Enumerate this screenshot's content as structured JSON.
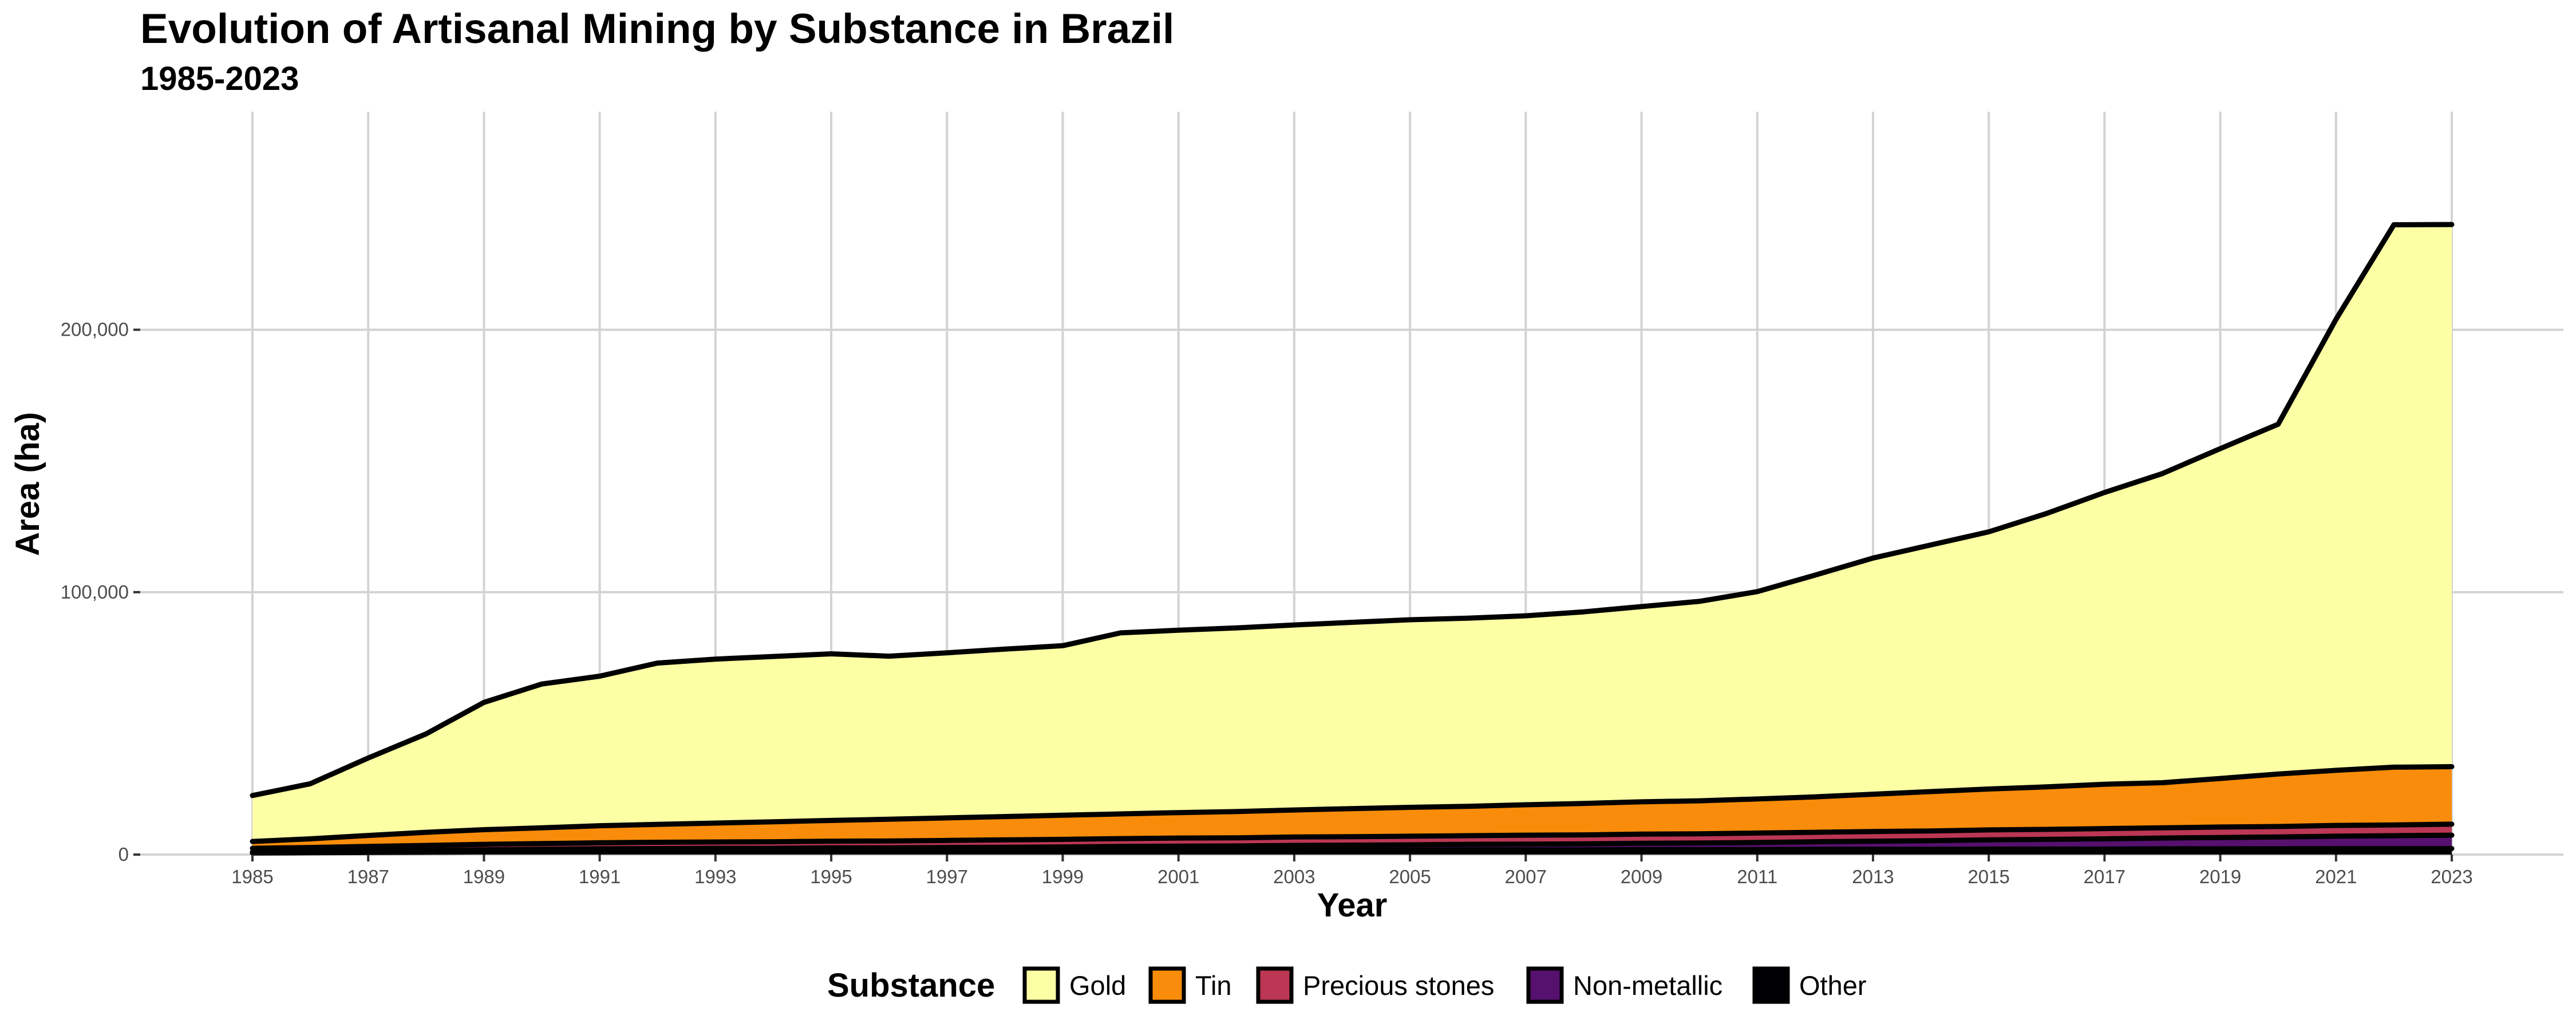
{
  "chart_data": {
    "type": "area",
    "stacked": true,
    "title": "Evolution of Artisanal Mining by Substance in Brazil",
    "subtitle": "1985-2023",
    "xlabel": "Year",
    "ylabel": "Area (ha)",
    "xlim": [
      1985,
      2023
    ],
    "ylim": [
      0,
      270000
    ],
    "x_ticks": [
      1985,
      1987,
      1989,
      1991,
      1993,
      1995,
      1997,
      1999,
      2001,
      2003,
      2005,
      2007,
      2009,
      2011,
      2013,
      2015,
      2017,
      2019,
      2021,
      2023
    ],
    "y_ticks": [
      0,
      100000,
      200000
    ],
    "y_tick_labels": [
      "0",
      "100,000",
      "200,000"
    ],
    "grid": true,
    "legend": {
      "title": "Substance",
      "position": "bottom"
    },
    "x": [
      1985,
      1986,
      1987,
      1988,
      1989,
      1990,
      1991,
      1992,
      1993,
      1994,
      1995,
      1996,
      1997,
      1998,
      1999,
      2000,
      2001,
      2002,
      2003,
      2004,
      2005,
      2006,
      2007,
      2008,
      2009,
      2010,
      2011,
      2012,
      2013,
      2014,
      2015,
      2016,
      2017,
      2018,
      2019,
      2020,
      2021,
      2022,
      2023
    ],
    "series": [
      {
        "name": "Other",
        "color": "#000004",
        "values": [
          600,
          700,
          800,
          900,
          1000,
          1100,
          1200,
          1300,
          1300,
          1300,
          1400,
          1400,
          1400,
          1500,
          1500,
          1600,
          1600,
          1600,
          1700,
          1700,
          1700,
          1800,
          1800,
          1800,
          1900,
          1900,
          1900,
          2000,
          2000,
          2000,
          2100,
          2100,
          2100,
          2200,
          2200,
          2200,
          2300,
          2300,
          2300
        ]
      },
      {
        "name": "Non-metallic",
        "color": "#56106e",
        "values": [
          400,
          500,
          600,
          700,
          800,
          900,
          1000,
          1000,
          1100,
          1100,
          1200,
          1200,
          1300,
          1300,
          1400,
          1500,
          1600,
          1700,
          1800,
          1900,
          2000,
          2100,
          2200,
          2300,
          2400,
          2500,
          2700,
          2900,
          3100,
          3300,
          3500,
          3700,
          3900,
          4100,
          4300,
          4500,
          4700,
          4900,
          5100
        ]
      },
      {
        "name": "Precious stones",
        "color": "#bb3754",
        "values": [
          1400,
          1500,
          1700,
          1900,
          2100,
          2200,
          2300,
          2400,
          2400,
          2500,
          2500,
          2600,
          2700,
          2800,
          2900,
          3000,
          3100,
          3100,
          3200,
          3200,
          3300,
          3300,
          3400,
          3400,
          3500,
          3500,
          3600,
          3600,
          3700,
          3700,
          3800,
          3800,
          3900,
          3900,
          4000,
          4000,
          4100,
          4100,
          4200
        ]
      },
      {
        "name": "Tin",
        "color": "#f98c0a",
        "values": [
          2600,
          3300,
          4200,
          5000,
          5600,
          6000,
          6500,
          6800,
          7200,
          7600,
          7900,
          8300,
          8600,
          8900,
          9200,
          9400,
          9700,
          10000,
          10300,
          10700,
          11000,
          11200,
          11600,
          12000,
          12300,
          12600,
          13000,
          13500,
          14200,
          15000,
          15600,
          16200,
          16900,
          17200,
          18500,
          20000,
          21000,
          22000,
          21900
        ]
      },
      {
        "name": "Gold",
        "color": "#fcffa4",
        "values": [
          17500,
          21000,
          29500,
          37500,
          48500,
          54800,
          57000,
          61500,
          62500,
          63000,
          63500,
          62100,
          62900,
          63800,
          64600,
          69000,
          69500,
          70000,
          70500,
          71000,
          71500,
          71700,
          72000,
          73000,
          74400,
          76000,
          79000,
          84500,
          90000,
          94000,
          98000,
          104200,
          111200,
          117800,
          125700,
          133300,
          171900,
          206700,
          206600
        ]
      }
    ]
  }
}
